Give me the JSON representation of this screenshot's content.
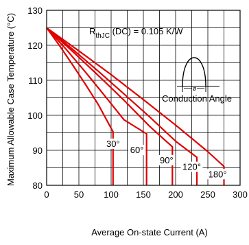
{
  "chart_data": {
    "type": "line",
    "xlabel": "Average On-state Current (A)",
    "ylabel": "Maximum Allowable Case Temperature (°C)",
    "xlim": [
      0,
      300
    ],
    "ylim": [
      80,
      130
    ],
    "xticks": [
      0,
      50,
      100,
      150,
      200,
      250,
      300
    ],
    "yticks": [
      80,
      90,
      100,
      110,
      120,
      130
    ],
    "grid": true,
    "line_color": "#e00000",
    "annotation": {
      "r_symbol": "R",
      "r_subscript": "thJC",
      "r_text": " (DC) = 0.105 K/W"
    },
    "inset": {
      "symbol": "ø",
      "caption": "Conduction Angle"
    },
    "series": [
      {
        "label": "30°",
        "label_at": [
          103,
          91
        ],
        "x": [
          0,
          20,
          40,
          60,
          80,
          103,
          103,
          103
        ],
        "y": [
          125,
          119.9,
          114.5,
          108.9,
          103.1,
          95.3,
          95.3,
          80
        ]
      },
      {
        "label": "60°",
        "label_at": [
          140,
          89.2
        ],
        "x": [
          0,
          30,
          60,
          90,
          120,
          155,
          155
        ],
        "y": [
          125,
          118.9,
          112.4,
          105.6,
          98.7,
          94.7,
          80
        ]
      },
      {
        "label": "90°",
        "label_at": [
          186,
          86.3
        ],
        "x": [
          0,
          40,
          80,
          120,
          160,
          195,
          195
        ],
        "y": [
          125,
          118.3,
          111.4,
          104.3,
          96.8,
          91,
          80
        ]
      },
      {
        "label": "120°",
        "label_at": [
          225,
          84.4
        ],
        "x": [
          0,
          40,
          80,
          120,
          160,
          200,
          233,
          233
        ],
        "y": [
          125,
          118.9,
          112.6,
          106.1,
          99.5,
          92.6,
          88,
          80
        ]
      },
      {
        "label": "180°",
        "label_at": [
          265,
          82.3
        ],
        "x": [
          0,
          50,
          100,
          150,
          200,
          250,
          275,
          275
        ],
        "y": [
          125,
          118.4,
          111.6,
          104.5,
          97.2,
          89.6,
          85.4,
          80
        ]
      }
    ]
  }
}
